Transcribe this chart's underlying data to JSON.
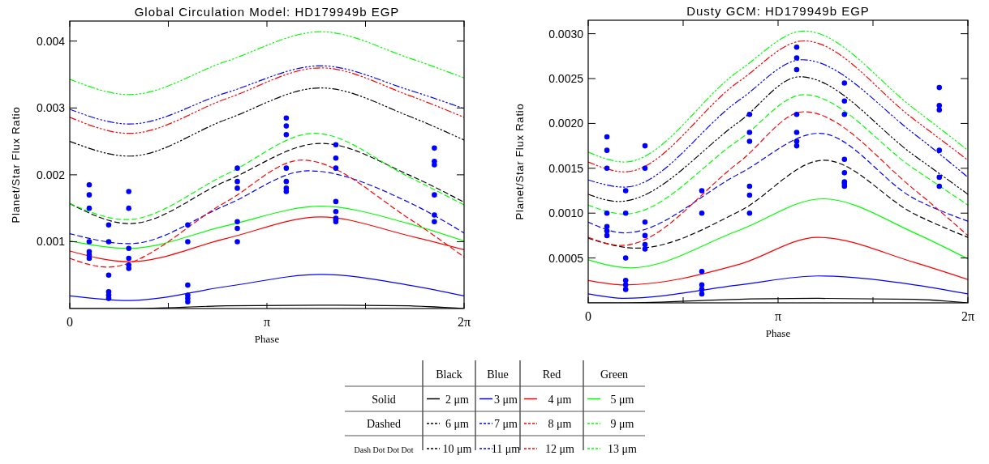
{
  "chart_data": [
    {
      "type": "line",
      "title": "Global Circulation Model: HD179949b EGP",
      "xlabel": "Phase",
      "ylabel": "Planet/Star Flux Ratio",
      "xlim": [
        0,
        6.2832
      ],
      "ylim": [
        0,
        0.0043
      ],
      "xticks": [
        {
          "value": 0,
          "label": "0"
        },
        {
          "value": 1.5708,
          "label": null
        },
        {
          "value": 3.1416,
          "label": "π"
        },
        {
          "value": 4.7124,
          "label": null
        },
        {
          "value": 6.2832,
          "label": "2π"
        }
      ],
      "yticks": [
        0.001,
        0.002,
        0.003,
        0.004
      ],
      "legend": "bottom",
      "annotations": [
        "Black",
        "Blue",
        "Red",
        "Green",
        "Solid",
        "Dashed",
        "Dash Dot Dot Dot"
      ],
      "series": [
        {
          "name": "2 μm",
          "color": "#000000",
          "line_style": "solid",
          "x": [
            0,
            0.95,
            2.5,
            4.0,
            5.4,
            6.2832
          ],
          "values": [
            0,
            0,
            4e-05,
            5e-05,
            4e-05,
            0
          ]
        },
        {
          "name": "3 μm",
          "color": "#0000ff",
          "line_style": "solid",
          "x": [
            0,
            0.95,
            2.5,
            4.0,
            5.4,
            6.2832
          ],
          "values": [
            0.00019,
            0.00012,
            0.00033,
            0.00051,
            0.00035,
            0.00019
          ]
        },
        {
          "name": "4 μm",
          "color": "#ff0000",
          "line_style": "solid",
          "x": [
            0,
            0.95,
            2.5,
            4.0,
            5.4,
            6.2832
          ],
          "values": [
            0.00086,
            0.0007,
            0.00105,
            0.00137,
            0.00109,
            0.00088
          ]
        },
        {
          "name": "5 μm",
          "color": "#00ff00",
          "line_style": "solid",
          "x": [
            0,
            0.95,
            2.5,
            4.0,
            5.4,
            6.2832
          ],
          "values": [
            0.00101,
            0.0009,
            0.00124,
            0.00153,
            0.00127,
            0.00101
          ]
        },
        {
          "name": "6 μm",
          "color": "#000000",
          "line_style": "dashed",
          "x": [
            0,
            0.95,
            2.5,
            4.0,
            5.4,
            6.2832
          ],
          "values": [
            0.00157,
            0.00127,
            0.00191,
            0.00247,
            0.002,
            0.00159
          ]
        },
        {
          "name": "7 μm",
          "color": "#0000ff",
          "line_style": "dashed",
          "x": [
            0,
            0.95,
            2.5,
            3.8,
            5.4,
            6.2832
          ],
          "values": [
            0.00112,
            0.00097,
            0.00155,
            0.00206,
            0.00159,
            0.00113
          ]
        },
        {
          "name": "8 μm",
          "color": "#ff0000",
          "line_style": "dashed",
          "x": [
            0,
            0.6,
            2.5,
            3.7,
            5.4,
            6.2832
          ],
          "values": [
            0.00075,
            0.00062,
            0.0016,
            0.00222,
            0.00135,
            0.00077
          ]
        },
        {
          "name": "9 μm",
          "color": "#00ff00",
          "line_style": "dashed",
          "x": [
            0,
            0.9,
            2.5,
            3.9,
            5.4,
            6.2832
          ],
          "values": [
            0.00157,
            0.00133,
            0.00201,
            0.00262,
            0.00197,
            0.00155
          ]
        },
        {
          "name": "10 μm",
          "color": "#000000",
          "line_style": "dashdotdotdot",
          "x": [
            0,
            0.95,
            2.5,
            4.0,
            5.4,
            6.2832
          ],
          "values": [
            0.0025,
            0.00228,
            0.00283,
            0.0033,
            0.00288,
            0.00252
          ]
        },
        {
          "name": "11 μm",
          "color": "#0000ff",
          "line_style": "dashdotdotdot",
          "x": [
            0,
            0.95,
            2.5,
            4.0,
            5.4,
            6.2832
          ],
          "values": [
            0.00298,
            0.00276,
            0.00323,
            0.00363,
            0.00327,
            0.00299
          ]
        },
        {
          "name": "12 μm",
          "color": "#ff0000",
          "line_style": "dashdotdotdot",
          "x": [
            0,
            0.95,
            2.5,
            4.0,
            5.4,
            6.2832
          ],
          "values": [
            0.00286,
            0.00262,
            0.00314,
            0.0036,
            0.00319,
            0.00286
          ]
        },
        {
          "name": "13 μm",
          "color": "#00ff00",
          "line_style": "dashdotdotdot",
          "x": [
            0,
            0.95,
            2.5,
            4.0,
            5.4,
            6.2832
          ],
          "values": [
            0.00343,
            0.0032,
            0.0037,
            0.00414,
            0.00375,
            0.00345
          ]
        },
        {
          "type": "scatter",
          "color": "#0000ff",
          "marker": "circle",
          "x": [
            0.31,
            0.31,
            0.31,
            0.31,
            0.31,
            0.31,
            0.31,
            0.62,
            0.62,
            0.62,
            0.62,
            0.62,
            0.62,
            0.94,
            0.94,
            0.94,
            0.94,
            0.94,
            0.94,
            1.88,
            1.88,
            1.88,
            1.88,
            1.88,
            1.88,
            2.67,
            2.67,
            2.67,
            2.67,
            2.67,
            2.67,
            3.45,
            3.45,
            3.45,
            3.45,
            3.45,
            3.45,
            3.45,
            4.24,
            4.24,
            4.24,
            4.24,
            4.24,
            4.24,
            4.24,
            4.24,
            5.81,
            5.81,
            5.81,
            5.81,
            5.81,
            5.81
          ],
          "values": [
            0.00185,
            0.0017,
            0.0015,
            0.001,
            0.00085,
            0.0008,
            0.00075,
            0.00125,
            0.001,
            0.0005,
            0.00025,
            0.0002,
            0.00015,
            0.00175,
            0.0015,
            0.0009,
            0.00075,
            0.00065,
            0.0006,
            0.00125,
            0.001,
            0.00035,
            0.0002,
            0.00015,
            0.0001,
            0.0021,
            0.0019,
            0.0018,
            0.0013,
            0.0012,
            0.001,
            0.00285,
            0.00273,
            0.0026,
            0.0021,
            0.0019,
            0.0018,
            0.00175,
            0.00245,
            0.00225,
            0.0021,
            0.0016,
            0.00145,
            0.00135,
            0.00133,
            0.0013,
            0.0024,
            0.0022,
            0.00215,
            0.0017,
            0.0014,
            0.0013
          ]
        }
      ]
    },
    {
      "type": "line",
      "title": "Dusty GCM: HD179949b EGP",
      "xlabel": "Phase",
      "ylabel": "Planet/Star Flux Ratio",
      "xlim": [
        0,
        6.2832
      ],
      "ylim": [
        0,
        0.00315
      ],
      "xticks": [
        {
          "value": 0,
          "label": "0"
        },
        {
          "value": 1.5708,
          "label": null
        },
        {
          "value": 3.1416,
          "label": "π"
        },
        {
          "value": 4.7124,
          "label": null
        },
        {
          "value": 6.2832,
          "label": "2π"
        }
      ],
      "yticks": [
        {
          "value": 0.0005,
          "label": "0.0005"
        },
        {
          "value": 0.001,
          "label": "0.0010"
        },
        {
          "value": 0.0015,
          "label": "0.0015"
        },
        {
          "value": 0.002,
          "label": "0.0020"
        },
        {
          "value": 0.0025,
          "label": "0.0025"
        },
        {
          "value": 0.003,
          "label": "0.0030"
        }
      ],
      "series": [
        {
          "color": "#000000",
          "line_style": "solid",
          "x": [
            0,
            0.6,
            2.5,
            3.8,
            5.4,
            6.2832
          ],
          "values": [
            0,
            0,
            4e-05,
            5e-05,
            4e-05,
            0
          ]
        },
        {
          "color": "#0000ff",
          "line_style": "solid",
          "x": [
            0,
            0.6,
            2.5,
            3.8,
            5.4,
            6.2832
          ],
          "values": [
            0.0001,
            5e-05,
            0.0002,
            0.0003,
            0.0002,
            0.0001
          ]
        },
        {
          "color": "#ff0000",
          "line_style": "solid",
          "x": [
            0,
            0.6,
            2.5,
            3.8,
            5.4,
            6.2832
          ],
          "values": [
            0.00025,
            0.0002,
            0.00043,
            0.00073,
            0.00045,
            0.00026
          ]
        },
        {
          "color": "#00ff00",
          "line_style": "solid",
          "x": [
            0,
            0.7,
            2.5,
            3.88,
            5.4,
            6.2832
          ],
          "values": [
            0.00048,
            0.00039,
            0.00081,
            0.00116,
            0.00078,
            0.00049
          ]
        },
        {
          "color": "#000000",
          "line_style": "dashed",
          "x": [
            0,
            0.8,
            2.5,
            3.9,
            5.4,
            6.2832
          ],
          "values": [
            0.00072,
            0.00061,
            0.00102,
            0.00159,
            0.00099,
            0.00073
          ]
        },
        {
          "color": "#0000ff",
          "line_style": "dashed",
          "x": [
            0,
            0.6,
            2.5,
            3.82,
            5.4,
            6.2832
          ],
          "values": [
            0.0009,
            0.00078,
            0.00144,
            0.00189,
            0.00116,
            0.00091
          ]
        },
        {
          "color": "#ff0000",
          "line_style": "dashed",
          "x": [
            0,
            0.55,
            2.5,
            3.57,
            5.4,
            6.2832
          ],
          "values": [
            0.00073,
            0.00064,
            0.00157,
            0.00213,
            0.00126,
            0.00075
          ]
        },
        {
          "color": "#00ff00",
          "line_style": "dashed",
          "x": [
            0,
            0.6,
            2.5,
            3.57,
            5.4,
            6.2832
          ],
          "values": [
            0.00109,
            0.00099,
            0.00182,
            0.00232,
            0.00149,
            0.00109
          ]
        },
        {
          "color": "#000000",
          "line_style": "dashdotdotdot",
          "x": [
            0,
            0.5,
            2.5,
            3.5,
            5.4,
            6.2832
          ],
          "values": [
            0.00121,
            0.00113,
            0.00202,
            0.00252,
            0.00164,
            0.00121
          ]
        },
        {
          "color": "#0000ff",
          "line_style": "dashdotdotdot",
          "x": [
            0,
            0.6,
            2.5,
            3.54,
            5.4,
            6.2832
          ],
          "values": [
            0.00137,
            0.00129,
            0.00226,
            0.00271,
            0.00188,
            0.0014
          ]
        },
        {
          "color": "#ff0000",
          "line_style": "dashdotdotdot",
          "x": [
            0,
            0.6,
            2.5,
            3.57,
            5.4,
            6.2832
          ],
          "values": [
            0.00157,
            0.00146,
            0.00247,
            0.00292,
            0.00204,
            0.00159
          ]
        },
        {
          "color": "#00ff00",
          "line_style": "dashdotdotdot",
          "x": [
            0,
            0.6,
            2.5,
            3.57,
            5.4,
            6.2832
          ],
          "values": [
            0.00168,
            0.00157,
            0.00259,
            0.00303,
            0.00216,
            0.0017
          ]
        },
        {
          "type": "scatter",
          "color": "#0000ff",
          "marker": "circle",
          "x": [
            0.31,
            0.31,
            0.31,
            0.31,
            0.31,
            0.31,
            0.31,
            0.62,
            0.62,
            0.62,
            0.62,
            0.62,
            0.62,
            0.94,
            0.94,
            0.94,
            0.94,
            0.94,
            0.94,
            1.88,
            1.88,
            1.88,
            1.88,
            1.88,
            1.88,
            2.67,
            2.67,
            2.67,
            2.67,
            2.67,
            2.67,
            3.45,
            3.45,
            3.45,
            3.45,
            3.45,
            3.45,
            3.45,
            4.24,
            4.24,
            4.24,
            4.24,
            4.24,
            4.24,
            4.24,
            4.24,
            5.81,
            5.81,
            5.81,
            5.81,
            5.81,
            5.81
          ],
          "values": [
            0.00185,
            0.0017,
            0.0015,
            0.001,
            0.00085,
            0.0008,
            0.00075,
            0.00125,
            0.001,
            0.0005,
            0.00025,
            0.0002,
            0.00015,
            0.00175,
            0.0015,
            0.0009,
            0.00075,
            0.00065,
            0.0006,
            0.00125,
            0.001,
            0.00035,
            0.0002,
            0.00015,
            0.0001,
            0.0021,
            0.0019,
            0.0018,
            0.0013,
            0.0012,
            0.001,
            0.00285,
            0.00273,
            0.0026,
            0.0021,
            0.0019,
            0.0018,
            0.00175,
            0.00245,
            0.00225,
            0.0021,
            0.0016,
            0.00145,
            0.00135,
            0.00133,
            0.0013,
            0.0024,
            0.0022,
            0.00215,
            0.0017,
            0.0014,
            0.0013
          ]
        }
      ]
    }
  ]
}
